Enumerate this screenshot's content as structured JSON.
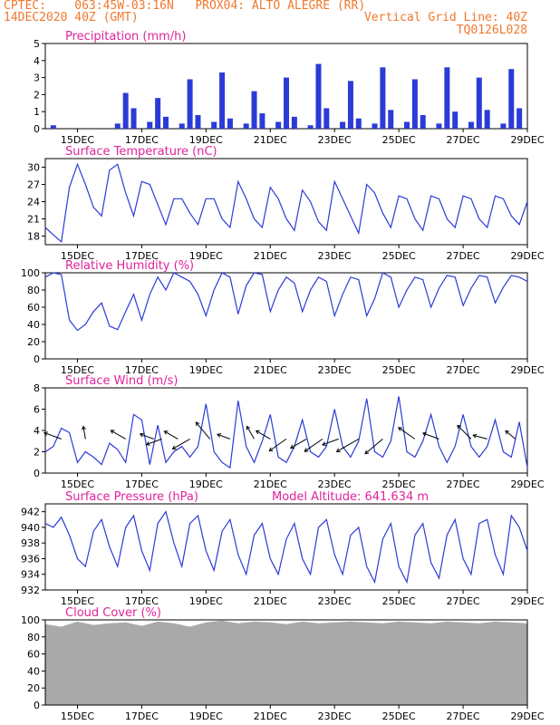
{
  "header": {
    "line1_left": "CPTEC:    063:45W-03:16N   PROX04: ALTO ALEGRE (RR)",
    "line2_left": "14DEC2020 40Z (GMT)",
    "line2_right": "Vertical Grid Line: 40Z",
    "line3_right": "TQ0126L028"
  },
  "colors": {
    "line": "#2b3bd6",
    "bar": "#2b3bd6",
    "title": "#e0239c",
    "header": "#f0782d",
    "cloud": "#a9a9a9"
  },
  "x_axis": {
    "start": "14DEC2020 00Z",
    "end": "29DEC2020 00Z",
    "tick_labels": [
      "15DEC",
      "17DEC",
      "19DEC",
      "21DEC",
      "23DEC",
      "25DEC",
      "27DEC",
      "29DEC"
    ]
  },
  "chart_data": [
    {
      "type": "bar",
      "title": "Precipitation (mm/h)",
      "ylim": [
        0,
        5
      ],
      "yticks": [
        0,
        1,
        2,
        3,
        4,
        5
      ],
      "x": [
        "14DEC 06Z",
        "16DEC 06Z",
        "16DEC 12Z",
        "16DEC 18Z",
        "17DEC 06Z",
        "17DEC 12Z",
        "17DEC 18Z",
        "18DEC 06Z",
        "18DEC 12Z",
        "18DEC 18Z",
        "19DEC 06Z",
        "19DEC 12Z",
        "19DEC 18Z",
        "20DEC 06Z",
        "20DEC 12Z",
        "20DEC 18Z",
        "21DEC 06Z",
        "21DEC 12Z",
        "21DEC 18Z",
        "22DEC 06Z",
        "22DEC 12Z",
        "22DEC 18Z",
        "23DEC 06Z",
        "23DEC 12Z",
        "23DEC 18Z",
        "24DEC 06Z",
        "24DEC 12Z",
        "24DEC 18Z",
        "25DEC 06Z",
        "25DEC 12Z",
        "25DEC 18Z",
        "26DEC 06Z",
        "26DEC 12Z",
        "26DEC 18Z",
        "27DEC 06Z",
        "27DEC 12Z",
        "27DEC 18Z",
        "28DEC 06Z",
        "28DEC 12Z",
        "28DEC 18Z"
      ],
      "values": [
        0.2,
        0.3,
        2.1,
        1.2,
        0.4,
        1.8,
        0.7,
        0.3,
        2.9,
        0.8,
        0.4,
        3.3,
        0.6,
        0.3,
        2.2,
        0.9,
        0.4,
        3.0,
        0.7,
        0.2,
        3.8,
        1.2,
        0.4,
        2.8,
        0.6,
        0.3,
        3.6,
        1.1,
        0.4,
        2.9,
        0.8,
        0.3,
        3.6,
        1.0,
        0.4,
        3.0,
        1.1,
        0.3,
        3.5,
        1.2
      ]
    },
    {
      "type": "line",
      "title": "Surface Temperature (nC)",
      "ylim": [
        16.5,
        31.5
      ],
      "yticks": [
        18,
        21,
        24,
        27,
        30
      ],
      "series": [
        {
          "x": [
            "14DEC 00Z",
            "14DEC 06Z",
            "14DEC 12Z",
            "14DEC 18Z",
            "15DEC 00Z",
            "15DEC 06Z",
            "15DEC 12Z",
            "15DEC 18Z",
            "16DEC 00Z",
            "16DEC 06Z",
            "16DEC 12Z",
            "16DEC 18Z",
            "17DEC 00Z",
            "17DEC 06Z",
            "17DEC 12Z",
            "17DEC 18Z",
            "18DEC 00Z",
            "18DEC 06Z",
            "18DEC 12Z",
            "18DEC 18Z",
            "19DEC 00Z",
            "19DEC 06Z",
            "19DEC 12Z",
            "19DEC 18Z",
            "20DEC 00Z",
            "20DEC 06Z",
            "20DEC 12Z",
            "20DEC 18Z",
            "21DEC 00Z",
            "21DEC 06Z",
            "21DEC 12Z",
            "21DEC 18Z",
            "22DEC 00Z",
            "22DEC 06Z",
            "22DEC 12Z",
            "22DEC 18Z",
            "23DEC 00Z",
            "23DEC 06Z",
            "23DEC 12Z",
            "23DEC 18Z",
            "24DEC 00Z",
            "24DEC 06Z",
            "24DEC 12Z",
            "24DEC 18Z",
            "25DEC 00Z",
            "25DEC 06Z",
            "25DEC 12Z",
            "25DEC 18Z",
            "26DEC 00Z",
            "26DEC 06Z",
            "26DEC 12Z",
            "26DEC 18Z",
            "27DEC 00Z",
            "27DEC 06Z",
            "27DEC 12Z",
            "27DEC 18Z",
            "28DEC 00Z",
            "28DEC 06Z",
            "28DEC 12Z",
            "28DEC 18Z",
            "29DEC 00Z"
          ],
          "values": [
            19.5,
            18.2,
            17.0,
            26.5,
            30.5,
            27.0,
            23.0,
            21.5,
            29.5,
            30.5,
            25.5,
            21.5,
            27.5,
            27.0,
            23.5,
            20.0,
            24.5,
            24.5,
            22.0,
            20.0,
            24.5,
            24.5,
            21.0,
            19.5,
            27.5,
            24.5,
            21.0,
            19.5,
            26.5,
            24.5,
            21.0,
            19.0,
            26.0,
            24.0,
            20.5,
            19.0,
            27.5,
            24.5,
            21.5,
            18.5,
            27.0,
            25.5,
            22.0,
            19.5,
            25.0,
            24.5,
            21.0,
            19.0,
            25.0,
            24.5,
            21.0,
            19.5,
            25.0,
            24.5,
            21.0,
            19.5,
            25.0,
            24.5,
            21.5,
            20.0,
            24.0
          ]
        }
      ]
    },
    {
      "type": "line",
      "title": "Relative Humidity (%)",
      "ylim": [
        0,
        100
      ],
      "yticks": [
        0,
        20,
        40,
        60,
        80,
        100
      ],
      "series": [
        {
          "x": [
            "14DEC 00Z",
            "14DEC 06Z",
            "14DEC 12Z",
            "14DEC 18Z",
            "15DEC 00Z",
            "15DEC 06Z",
            "15DEC 12Z",
            "15DEC 18Z",
            "16DEC 00Z",
            "16DEC 06Z",
            "16DEC 12Z",
            "16DEC 18Z",
            "17DEC 00Z",
            "17DEC 06Z",
            "17DEC 12Z",
            "17DEC 18Z",
            "18DEC 00Z",
            "18DEC 06Z",
            "18DEC 12Z",
            "18DEC 18Z",
            "19DEC 00Z",
            "19DEC 06Z",
            "19DEC 12Z",
            "19DEC 18Z",
            "20DEC 00Z",
            "20DEC 06Z",
            "20DEC 12Z",
            "20DEC 18Z",
            "21DEC 00Z",
            "21DEC 06Z",
            "21DEC 12Z",
            "21DEC 18Z",
            "22DEC 00Z",
            "22DEC 06Z",
            "22DEC 12Z",
            "22DEC 18Z",
            "23DEC 00Z",
            "23DEC 06Z",
            "23DEC 12Z",
            "23DEC 18Z",
            "24DEC 00Z",
            "24DEC 06Z",
            "24DEC 12Z",
            "24DEC 18Z",
            "25DEC 00Z",
            "25DEC 06Z",
            "25DEC 12Z",
            "25DEC 18Z",
            "26DEC 00Z",
            "26DEC 06Z",
            "26DEC 12Z",
            "26DEC 18Z",
            "27DEC 00Z",
            "27DEC 06Z",
            "27DEC 12Z",
            "27DEC 18Z",
            "28DEC 00Z",
            "28DEC 06Z",
            "28DEC 12Z",
            "28DEC 18Z",
            "29DEC 00Z"
          ],
          "values": [
            95,
            100,
            98,
            45,
            33,
            40,
            55,
            65,
            38,
            34,
            55,
            75,
            45,
            75,
            95,
            80,
            100,
            95,
            90,
            75,
            50,
            80,
            100,
            95,
            52,
            85,
            100,
            98,
            55,
            80,
            95,
            88,
            55,
            80,
            95,
            90,
            50,
            75,
            95,
            92,
            50,
            70,
            100,
            95,
            60,
            80,
            95,
            92,
            60,
            82,
            97,
            95,
            62,
            82,
            97,
            95,
            65,
            83,
            97,
            95,
            90
          ]
        }
      ]
    },
    {
      "type": "line",
      "title": "Surface Wind (m/s)",
      "ylim": [
        0,
        8
      ],
      "yticks": [
        0,
        2,
        4,
        6,
        8
      ],
      "series": [
        {
          "x": [
            "14DEC 00Z",
            "14DEC 06Z",
            "14DEC 12Z",
            "14DEC 18Z",
            "15DEC 00Z",
            "15DEC 06Z",
            "15DEC 12Z",
            "15DEC 18Z",
            "16DEC 00Z",
            "16DEC 06Z",
            "16DEC 12Z",
            "16DEC 18Z",
            "17DEC 00Z",
            "17DEC 06Z",
            "17DEC 12Z",
            "17DEC 18Z",
            "18DEC 00Z",
            "18DEC 06Z",
            "18DEC 12Z",
            "18DEC 18Z",
            "19DEC 00Z",
            "19DEC 06Z",
            "19DEC 12Z",
            "19DEC 18Z",
            "20DEC 00Z",
            "20DEC 06Z",
            "20DEC 12Z",
            "20DEC 18Z",
            "21DEC 00Z",
            "21DEC 06Z",
            "21DEC 12Z",
            "21DEC 18Z",
            "22DEC 00Z",
            "22DEC 06Z",
            "22DEC 12Z",
            "22DEC 18Z",
            "23DEC 00Z",
            "23DEC 06Z",
            "23DEC 12Z",
            "23DEC 18Z",
            "24DEC 00Z",
            "24DEC 06Z",
            "24DEC 12Z",
            "24DEC 18Z",
            "25DEC 00Z",
            "25DEC 06Z",
            "25DEC 12Z",
            "25DEC 18Z",
            "26DEC 00Z",
            "26DEC 06Z",
            "26DEC 12Z",
            "26DEC 18Z",
            "27DEC 00Z",
            "27DEC 06Z",
            "27DEC 12Z",
            "27DEC 18Z",
            "28DEC 00Z",
            "28DEC 06Z",
            "28DEC 12Z",
            "28DEC 18Z",
            "29DEC 00Z"
          ],
          "values": [
            2.0,
            2.5,
            4.2,
            3.8,
            1.0,
            2.0,
            1.5,
            0.8,
            2.8,
            2.2,
            1.0,
            5.5,
            5.0,
            0.8,
            4.5,
            1.0,
            2.0,
            2.5,
            1.5,
            2.5,
            6.5,
            2.0,
            1.0,
            0.5,
            6.8,
            2.5,
            1.0,
            3.0,
            5.5,
            1.5,
            1.0,
            2.5,
            5.0,
            2.0,
            1.5,
            2.5,
            6.0,
            2.5,
            1.5,
            3.0,
            7.0,
            2.0,
            1.5,
            3.0,
            7.2,
            2.0,
            1.5,
            3.0,
            5.5,
            2.5,
            1.0,
            2.5,
            5.5,
            2.5,
            1.5,
            2.5,
            5.0,
            2.0,
            1.5,
            4.8,
            0.5
          ]
        }
      ],
      "wind_vectors": [
        {
          "x": "14DEC 12Z",
          "angle": -160,
          "speed": 3.5
        },
        {
          "x": "15DEC 06Z",
          "angle": -100,
          "speed": 2.0
        },
        {
          "x": "16DEC 12Z",
          "angle": -150,
          "speed": 3.2
        },
        {
          "x": "17DEC 09Z",
          "angle": 200,
          "speed": 2.5
        },
        {
          "x": "17DEC 15Z",
          "angle": 160,
          "speed": 3.0
        },
        {
          "x": "18DEC 03Z",
          "angle": -150,
          "speed": 2.8
        },
        {
          "x": "18DEC 12Z",
          "angle": 150,
          "speed": 4.0
        },
        {
          "x": "19DEC 03Z",
          "angle": -130,
          "speed": 4.5
        },
        {
          "x": "19DEC 18Z",
          "angle": -160,
          "speed": 2.2
        },
        {
          "x": "20DEC 12Z",
          "angle": -120,
          "speed": 2.5
        },
        {
          "x": "21DEC 00Z",
          "angle": -150,
          "speed": 3.0
        },
        {
          "x": "21DEC 12Z",
          "angle": 145,
          "speed": 4.2
        },
        {
          "x": "22DEC 03Z",
          "angle": 150,
          "speed": 3.5
        },
        {
          "x": "22DEC 15Z",
          "angle": 145,
          "speed": 4.5
        },
        {
          "x": "23DEC 03Z",
          "angle": 160,
          "speed": 3.2
        },
        {
          "x": "23DEC 18Z",
          "angle": 150,
          "speed": 5.5
        },
        {
          "x": "24DEC 12Z",
          "angle": 140,
          "speed": 4.8
        },
        {
          "x": "25DEC 12Z",
          "angle": -145,
          "speed": 4.0
        },
        {
          "x": "26DEC 06Z",
          "angle": -160,
          "speed": 3.2
        },
        {
          "x": "27DEC 06Z",
          "angle": -135,
          "speed": 3.8
        },
        {
          "x": "27DEC 18Z",
          "angle": -165,
          "speed": 2.5
        },
        {
          "x": "28DEC 15Z",
          "angle": -140,
          "speed": 2.0
        }
      ]
    },
    {
      "type": "line",
      "title": "Surface Pressure (hPa)",
      "annotation": "Model Altitude: 641.634 m",
      "ylim": [
        932,
        943
      ],
      "yticks": [
        932,
        934,
        936,
        938,
        940,
        942
      ],
      "series": [
        {
          "x": [
            "14DEC 00Z",
            "14DEC 06Z",
            "14DEC 12Z",
            "14DEC 18Z",
            "15DEC 00Z",
            "15DEC 06Z",
            "15DEC 12Z",
            "15DEC 18Z",
            "16DEC 00Z",
            "16DEC 06Z",
            "16DEC 12Z",
            "16DEC 18Z",
            "17DEC 00Z",
            "17DEC 06Z",
            "17DEC 12Z",
            "17DEC 18Z",
            "18DEC 00Z",
            "18DEC 06Z",
            "18DEC 12Z",
            "18DEC 18Z",
            "19DEC 00Z",
            "19DEC 06Z",
            "19DEC 12Z",
            "19DEC 18Z",
            "20DEC 00Z",
            "20DEC 06Z",
            "20DEC 12Z",
            "20DEC 18Z",
            "21DEC 00Z",
            "21DEC 06Z",
            "21DEC 12Z",
            "21DEC 18Z",
            "22DEC 00Z",
            "22DEC 06Z",
            "22DEC 12Z",
            "22DEC 18Z",
            "23DEC 00Z",
            "23DEC 06Z",
            "23DEC 12Z",
            "23DEC 18Z",
            "24DEC 00Z",
            "24DEC 06Z",
            "24DEC 12Z",
            "24DEC 18Z",
            "25DEC 00Z",
            "25DEC 06Z",
            "25DEC 12Z",
            "25DEC 18Z",
            "26DEC 00Z",
            "26DEC 06Z",
            "26DEC 12Z",
            "26DEC 18Z",
            "27DEC 00Z",
            "27DEC 06Z",
            "27DEC 12Z",
            "27DEC 18Z",
            "28DEC 00Z",
            "28DEC 06Z",
            "28DEC 12Z",
            "28DEC 18Z",
            "29DEC 00Z"
          ],
          "values": [
            940.5,
            940.0,
            941.3,
            939.0,
            936.0,
            935.0,
            939.5,
            941.0,
            937.5,
            935.0,
            940.0,
            941.5,
            937.0,
            934.5,
            940.5,
            942.0,
            938.0,
            935.0,
            940.5,
            941.5,
            937.0,
            934.5,
            939.5,
            941.0,
            936.5,
            934.0,
            939.0,
            940.5,
            936.0,
            934.0,
            938.5,
            940.5,
            936.0,
            934.0,
            940.0,
            941.0,
            936.5,
            934.0,
            939.0,
            940.0,
            935.0,
            933.0,
            938.5,
            940.5,
            935.0,
            933.0,
            939.0,
            940.5,
            935.5,
            933.5,
            939.0,
            941.0,
            936.0,
            934.0,
            940.5,
            941.0,
            936.5,
            934.0,
            941.5,
            940.0,
            937.0
          ]
        }
      ]
    },
    {
      "type": "area",
      "title": "Cloud Cover (%)",
      "ylim": [
        0,
        100
      ],
      "yticks": [
        0,
        20,
        40,
        60,
        80,
        100
      ],
      "series": [
        {
          "x": [
            "14DEC 00Z",
            "14DEC 12Z",
            "15DEC 00Z",
            "15DEC 12Z",
            "16DEC 00Z",
            "16DEC 12Z",
            "17DEC 00Z",
            "17DEC 12Z",
            "18DEC 00Z",
            "18DEC 12Z",
            "19DEC 00Z",
            "19DEC 12Z",
            "20DEC 00Z",
            "20DEC 12Z",
            "21DEC 00Z",
            "21DEC 12Z",
            "22DEC 00Z",
            "22DEC 12Z",
            "23DEC 00Z",
            "23DEC 12Z",
            "24DEC 00Z",
            "24DEC 12Z",
            "25DEC 00Z",
            "25DEC 12Z",
            "26DEC 00Z",
            "26DEC 12Z",
            "27DEC 00Z",
            "27DEC 12Z",
            "28DEC 00Z",
            "28DEC 12Z",
            "29DEC 00Z"
          ],
          "values": [
            95,
            92,
            98,
            94,
            96,
            97,
            93,
            98,
            96,
            92,
            97,
            99,
            96,
            98,
            97,
            95,
            98,
            96,
            97,
            98,
            97,
            96,
            98,
            97,
            96,
            98,
            97,
            96,
            98,
            97,
            96
          ]
        }
      ]
    }
  ]
}
